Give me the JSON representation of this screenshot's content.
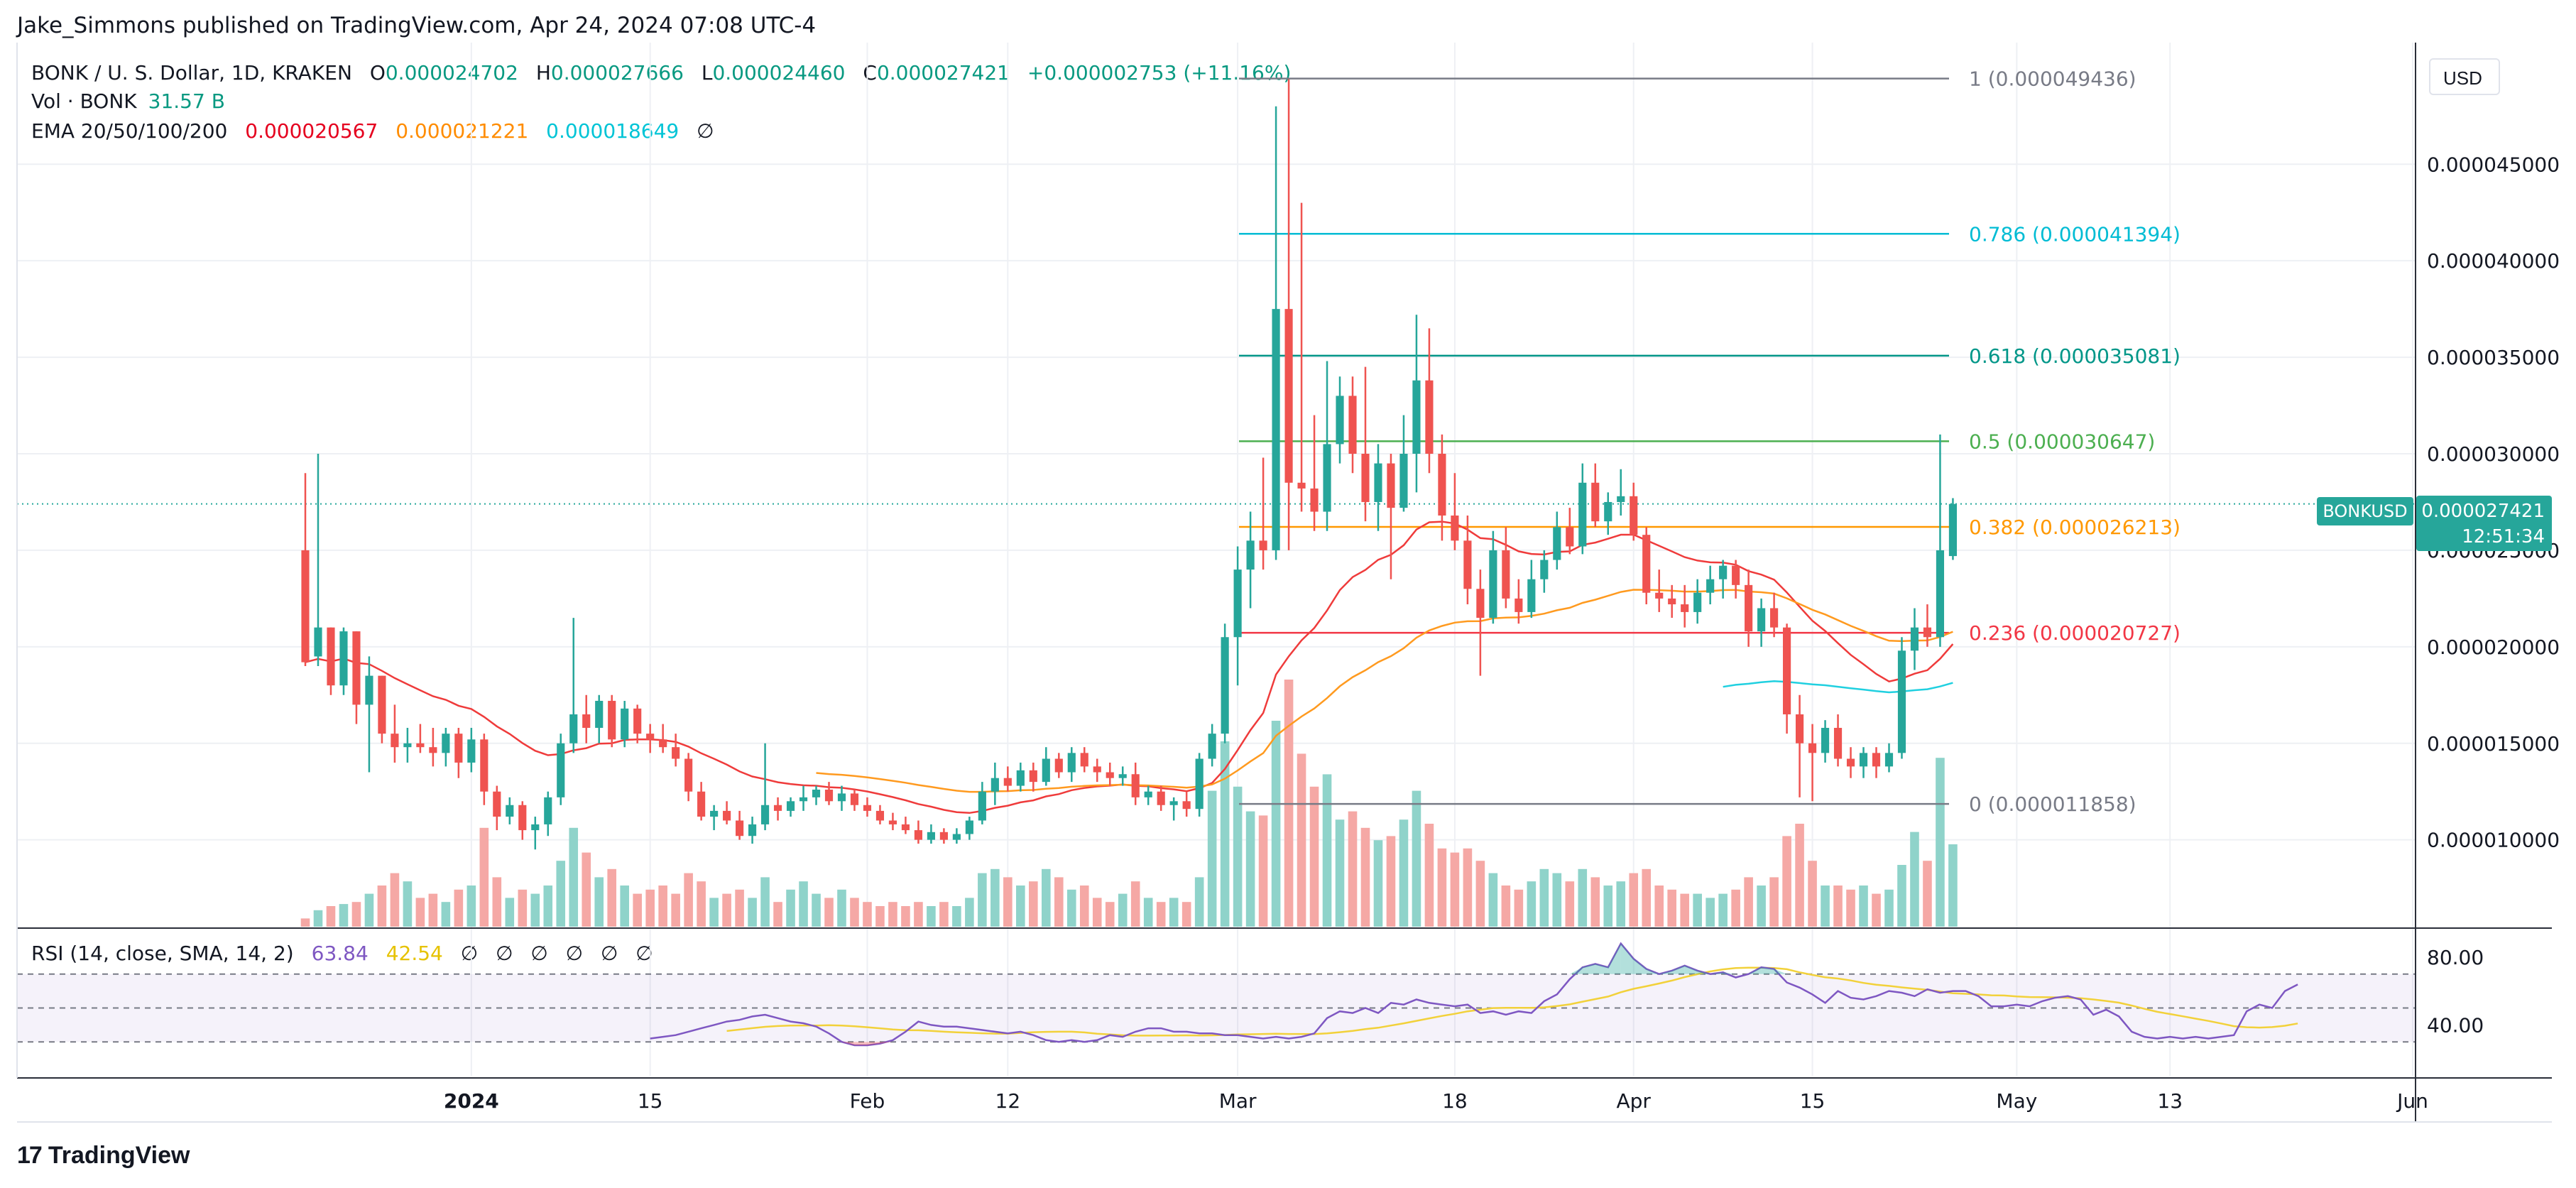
{
  "header": {
    "published": "Jake_Simmons published on TradingView.com, Apr 24, 2024 07:08 UTC-4"
  },
  "legend": {
    "symbol": "BONK / U. S. Dollar, 1D, KRAKEN",
    "o_label": "O",
    "o": "0.000024702",
    "h_label": "H",
    "h": "0.000027666",
    "l_label": "L",
    "l": "0.000024460",
    "c_label": "C",
    "c": "0.000027421",
    "change": "+0.000002753 (+11.16%)",
    "vol_label": "Vol · BONK",
    "vol": "31.57 B",
    "ema_label": "EMA 20/50/100/200",
    "ema20": "0.000020567",
    "ema50": "0.000021221",
    "ema100": "0.000018649",
    "ema200": "∅",
    "rsi_label": "RSI (14, close, SMA, 14, 2)",
    "rsi": "63.84",
    "rsi_ma": "42.54",
    "rsi_empty": [
      "∅",
      "∅",
      "∅",
      "∅",
      "∅",
      "∅"
    ]
  },
  "price_axis": {
    "currency": "USD",
    "symbol_tag": "BONKUSD",
    "last_price": "0.000027421",
    "countdown": "12:51:34",
    "ticks": [
      "0.000045000",
      "0.000040000",
      "0.000035000",
      "0.000030000",
      "0.000025000",
      "0.000020000",
      "0.000015000",
      "0.000010000"
    ],
    "rsi_ticks": [
      "80.00",
      "40.00"
    ]
  },
  "time_axis": {
    "labels": [
      "2024",
      "15",
      "Feb",
      "12",
      "Mar",
      "18",
      "Apr",
      "15",
      "May",
      "13",
      "Jun"
    ]
  },
  "footer": {
    "brand": "TradingView",
    "logo_glyph": "17"
  },
  "colors": {
    "up": "#26a69a",
    "down": "#ef5350",
    "up_vol": "#8fd3ca",
    "down_vol": "#f5a8a5",
    "ema20": "#ef3b3b",
    "ema50": "#ff9a1f",
    "ema100": "#20d0e0",
    "rsi": "#7e57c2",
    "rsi_ma": "#f2d13a"
  },
  "chart_data": {
    "type": "candlestick",
    "x_start": "2023-12-19",
    "candles": [
      [
        2.5e-05,
        2.9e-05,
        1.9e-05,
        1.92e-05,
        2.0
      ],
      [
        1.95e-05,
        3e-05,
        1.9e-05,
        2.1e-05,
        4.0
      ],
      [
        2.1e-05,
        2.1e-05,
        1.75e-05,
        1.8e-05,
        5.0
      ],
      [
        1.8e-05,
        2.1e-05,
        1.75e-05,
        2.08e-05,
        5.5
      ],
      [
        2.08e-05,
        2.08e-05,
        1.6e-05,
        1.7e-05,
        6.0
      ],
      [
        1.7e-05,
        1.95e-05,
        1.35e-05,
        1.85e-05,
        8.0
      ],
      [
        1.85e-05,
        1.85e-05,
        1.5e-05,
        1.55e-05,
        10.0
      ],
      [
        1.55e-05,
        1.7e-05,
        1.4e-05,
        1.48e-05,
        13.0
      ],
      [
        1.48e-05,
        1.58e-05,
        1.4e-05,
        1.5e-05,
        11.0
      ],
      [
        1.5e-05,
        1.6e-05,
        1.45e-05,
        1.48e-05,
        7.0
      ],
      [
        1.48e-05,
        1.58e-05,
        1.38e-05,
        1.45e-05,
        8.0
      ],
      [
        1.45e-05,
        1.58e-05,
        1.38e-05,
        1.55e-05,
        6.0
      ],
      [
        1.55e-05,
        1.58e-05,
        1.32e-05,
        1.4e-05,
        9.0
      ],
      [
        1.4e-05,
        1.58e-05,
        1.35e-05,
        1.52e-05,
        10.0
      ],
      [
        1.52e-05,
        1.55e-05,
        1.18e-05,
        1.25e-05,
        24.0
      ],
      [
        1.25e-05,
        1.28e-05,
        1.05e-05,
        1.12e-05,
        12.0
      ],
      [
        1.12e-05,
        1.22e-05,
        1.08e-05,
        1.18e-05,
        7.0
      ],
      [
        1.18e-05,
        1.2e-05,
        1e-05,
        1.05e-05,
        9.0
      ],
      [
        1.05e-05,
        1.12e-05,
        9.5e-06,
        1.08e-05,
        8.0
      ],
      [
        1.08e-05,
        1.25e-05,
        1.02e-05,
        1.22e-05,
        10.0
      ],
      [
        1.22e-05,
        1.55e-05,
        1.18e-05,
        1.5e-05,
        16.0
      ],
      [
        1.5e-05,
        2.15e-05,
        1.45e-05,
        1.65e-05,
        24.0
      ],
      [
        1.65e-05,
        1.75e-05,
        1.5e-05,
        1.58e-05,
        18.0
      ],
      [
        1.58e-05,
        1.75e-05,
        1.5e-05,
        1.72e-05,
        12.0
      ],
      [
        1.72e-05,
        1.75e-05,
        1.48e-05,
        1.52e-05,
        14.0
      ],
      [
        1.52e-05,
        1.72e-05,
        1.48e-05,
        1.68e-05,
        10.0
      ],
      [
        1.68e-05,
        1.7e-05,
        1.5e-05,
        1.55e-05,
        8.0
      ],
      [
        1.55e-05,
        1.6e-05,
        1.45e-05,
        1.52e-05,
        9.0
      ],
      [
        1.52e-05,
        1.6e-05,
        1.45e-05,
        1.48e-05,
        10.0
      ],
      [
        1.48e-05,
        1.55e-05,
        1.38e-05,
        1.42e-05,
        8.0
      ],
      [
        1.42e-05,
        1.45e-05,
        1.2e-05,
        1.25e-05,
        13.0
      ],
      [
        1.25e-05,
        1.3e-05,
        1.1e-05,
        1.12e-05,
        11.0
      ],
      [
        1.12e-05,
        1.18e-05,
        1.05e-05,
        1.15e-05,
        7.0
      ],
      [
        1.15e-05,
        1.2e-05,
        1.08e-05,
        1.1e-05,
        8.0
      ],
      [
        1.1e-05,
        1.15e-05,
        1e-05,
        1.02e-05,
        9.0
      ],
      [
        1.02e-05,
        1.12e-05,
        9.8e-06,
        1.08e-05,
        7.0
      ],
      [
        1.08e-05,
        1.5e-05,
        1.05e-05,
        1.18e-05,
        12.0
      ],
      [
        1.18e-05,
        1.22e-05,
        1.1e-05,
        1.15e-05,
        6.0
      ],
      [
        1.15e-05,
        1.22e-05,
        1.12e-05,
        1.2e-05,
        9.0
      ],
      [
        1.2e-05,
        1.28e-05,
        1.15e-05,
        1.22e-05,
        11.0
      ],
      [
        1.22e-05,
        1.28e-05,
        1.18e-05,
        1.26e-05,
        8.0
      ],
      [
        1.26e-05,
        1.3e-05,
        1.18e-05,
        1.2e-05,
        7.0
      ],
      [
        1.2e-05,
        1.28e-05,
        1.15e-05,
        1.24e-05,
        9.0
      ],
      [
        1.24e-05,
        1.26e-05,
        1.15e-05,
        1.18e-05,
        7.0
      ],
      [
        1.18e-05,
        1.22e-05,
        1.12e-05,
        1.15e-05,
        6.0
      ],
      [
        1.15e-05,
        1.18e-05,
        1.08e-05,
        1.1e-05,
        5.0
      ],
      [
        1.1e-05,
        1.14e-05,
        1.05e-05,
        1.08e-05,
        6.0
      ],
      [
        1.08e-05,
        1.12e-05,
        1.03e-05,
        1.05e-05,
        5.0
      ],
      [
        1.05e-05,
        1.1e-05,
        9.8e-06,
        1e-05,
        6.0
      ],
      [
        1e-05,
        1.08e-05,
        9.8e-06,
        1.04e-05,
        5.0
      ],
      [
        1.04e-05,
        1.06e-05,
        9.8e-06,
        1e-05,
        6.0
      ],
      [
        1e-05,
        1.06e-05,
        9.8e-06,
        1.03e-05,
        5.0
      ],
      [
        1.03e-05,
        1.12e-05,
        1e-05,
        1.1e-05,
        7.0
      ],
      [
        1.1e-05,
        1.3e-05,
        1.08e-05,
        1.25e-05,
        13.0
      ],
      [
        1.25e-05,
        1.4e-05,
        1.18e-05,
        1.32e-05,
        14.0
      ],
      [
        1.32e-05,
        1.38e-05,
        1.25e-05,
        1.28e-05,
        12.0
      ],
      [
        1.28e-05,
        1.4e-05,
        1.25e-05,
        1.36e-05,
        10.0
      ],
      [
        1.36e-05,
        1.4e-05,
        1.25e-05,
        1.3e-05,
        11.0
      ],
      [
        1.3e-05,
        1.48e-05,
        1.28e-05,
        1.42e-05,
        14.0
      ],
      [
        1.42e-05,
        1.45e-05,
        1.32e-05,
        1.35e-05,
        12.0
      ],
      [
        1.35e-05,
        1.48e-05,
        1.3e-05,
        1.45e-05,
        9.0
      ],
      [
        1.45e-05,
        1.48e-05,
        1.35e-05,
        1.38e-05,
        10.0
      ],
      [
        1.38e-05,
        1.42e-05,
        1.3e-05,
        1.35e-05,
        7.0
      ],
      [
        1.35e-05,
        1.4e-05,
        1.28e-05,
        1.32e-05,
        6.0
      ],
      [
        1.32e-05,
        1.38e-05,
        1.28e-05,
        1.34e-05,
        8.0
      ],
      [
        1.34e-05,
        1.4e-05,
        1.18e-05,
        1.22e-05,
        11.0
      ],
      [
        1.22e-05,
        1.28e-05,
        1.18e-05,
        1.25e-05,
        7.0
      ],
      [
        1.25e-05,
        1.28e-05,
        1.15e-05,
        1.18e-05,
        6.0
      ],
      [
        1.18e-05,
        1.22e-05,
        1.1e-05,
        1.2e-05,
        7.0
      ],
      [
        1.2e-05,
        1.25e-05,
        1.12e-05,
        1.16e-05,
        6.0
      ],
      [
        1.16e-05,
        1.45e-05,
        1.12e-05,
        1.42e-05,
        12.0
      ],
      [
        1.42e-05,
        1.6e-05,
        1.38e-05,
        1.55e-05,
        33.0
      ],
      [
        1.55e-05,
        2.12e-05,
        1.5e-05,
        2.05e-05,
        45.0
      ],
      [
        2.05e-05,
        2.52e-05,
        1.8e-05,
        2.4e-05,
        34.0
      ],
      [
        2.4e-05,
        2.7e-05,
        2.2e-05,
        2.55e-05,
        28.0
      ],
      [
        2.55e-05,
        2.98e-05,
        2.4e-05,
        2.5e-05,
        27.0
      ],
      [
        2.5e-05,
        4.8e-05,
        2.45e-05,
        3.75e-05,
        50.0
      ],
      [
        3.75e-05,
        4.94e-05,
        2.5e-05,
        2.85e-05,
        60.0
      ],
      [
        2.85e-05,
        4.3e-05,
        2.7e-05,
        2.82e-05,
        42.0
      ],
      [
        2.82e-05,
        3.2e-05,
        2.6e-05,
        2.7e-05,
        34.0
      ],
      [
        2.7e-05,
        3.48e-05,
        2.6e-05,
        3.05e-05,
        37.0
      ],
      [
        3.05e-05,
        3.4e-05,
        2.95e-05,
        3.3e-05,
        26.0
      ],
      [
        3.3e-05,
        3.4e-05,
        2.9e-05,
        3e-05,
        28.0
      ],
      [
        3e-05,
        3.45e-05,
        2.65e-05,
        2.75e-05,
        24.0
      ],
      [
        2.75e-05,
        3.05e-05,
        2.6e-05,
        2.95e-05,
        21.0
      ],
      [
        2.95e-05,
        3e-05,
        2.35e-05,
        2.72e-05,
        22.0
      ],
      [
        2.72e-05,
        3.2e-05,
        2.7e-05,
        3e-05,
        26.0
      ],
      [
        3e-05,
        3.72e-05,
        2.8e-05,
        3.38e-05,
        33.0
      ],
      [
        3.38e-05,
        3.65e-05,
        2.9e-05,
        3e-05,
        25.0
      ],
      [
        3e-05,
        3.1e-05,
        2.55e-05,
        2.68e-05,
        19.0
      ],
      [
        2.68e-05,
        2.9e-05,
        2.5e-05,
        2.55e-05,
        18.0
      ],
      [
        2.55e-05,
        2.68e-05,
        2.22e-05,
        2.3e-05,
        19.0
      ],
      [
        2.3e-05,
        2.4e-05,
        1.85e-05,
        2.15e-05,
        16.0
      ],
      [
        2.15e-05,
        2.6e-05,
        2.12e-05,
        2.5e-05,
        13.0
      ],
      [
        2.5e-05,
        2.62e-05,
        2.2e-05,
        2.25e-05,
        10.0
      ],
      [
        2.25e-05,
        2.35e-05,
        2.12e-05,
        2.18e-05,
        9.0
      ],
      [
        2.18e-05,
        2.45e-05,
        2.15e-05,
        2.35e-05,
        11.0
      ],
      [
        2.35e-05,
        2.5e-05,
        2.28e-05,
        2.45e-05,
        14.0
      ],
      [
        2.45e-05,
        2.7e-05,
        2.4e-05,
        2.62e-05,
        13.0
      ],
      [
        2.62e-05,
        2.72e-05,
        2.48e-05,
        2.52e-05,
        11.0
      ],
      [
        2.52e-05,
        2.95e-05,
        2.48e-05,
        2.85e-05,
        14.0
      ],
      [
        2.85e-05,
        2.95e-05,
        2.62e-05,
        2.65e-05,
        12.0
      ],
      [
        2.65e-05,
        2.8e-05,
        2.58e-05,
        2.75e-05,
        10.0
      ],
      [
        2.75e-05,
        2.92e-05,
        2.68e-05,
        2.78e-05,
        11.0
      ],
      [
        2.78e-05,
        2.85e-05,
        2.55e-05,
        2.58e-05,
        13.0
      ],
      [
        2.58e-05,
        2.62e-05,
        2.22e-05,
        2.28e-05,
        14.0
      ],
      [
        2.28e-05,
        2.4e-05,
        2.18e-05,
        2.25e-05,
        10.0
      ],
      [
        2.25e-05,
        2.32e-05,
        2.15e-05,
        2.22e-05,
        9.0
      ],
      [
        2.22e-05,
        2.32e-05,
        2.1e-05,
        2.18e-05,
        8.0
      ],
      [
        2.18e-05,
        2.35e-05,
        2.12e-05,
        2.28e-05,
        8.0
      ],
      [
        2.28e-05,
        2.42e-05,
        2.22e-05,
        2.35e-05,
        7.0
      ],
      [
        2.35e-05,
        2.45e-05,
        2.25e-05,
        2.42e-05,
        8.0
      ],
      [
        2.42e-05,
        2.45e-05,
        2.25e-05,
        2.32e-05,
        9.0
      ],
      [
        2.32e-05,
        2.4e-05,
        2e-05,
        2.08e-05,
        12.0
      ],
      [
        2.08e-05,
        2.25e-05,
        2e-05,
        2.2e-05,
        10.0
      ],
      [
        2.2e-05,
        2.28e-05,
        2.05e-05,
        2.1e-05,
        12.0
      ],
      [
        2.1e-05,
        2.12e-05,
        1.55e-05,
        1.65e-05,
        22.0
      ],
      [
        1.65e-05,
        1.75e-05,
        1.22e-05,
        1.5e-05,
        25.0
      ],
      [
        1.5e-05,
        1.6e-05,
        1.2e-05,
        1.45e-05,
        16.0
      ],
      [
        1.45e-05,
        1.62e-05,
        1.4e-05,
        1.58e-05,
        10.0
      ],
      [
        1.58e-05,
        1.65e-05,
        1.38e-05,
        1.42e-05,
        10.0
      ],
      [
        1.42e-05,
        1.48e-05,
        1.32e-05,
        1.38e-05,
        9.0
      ],
      [
        1.38e-05,
        1.48e-05,
        1.32e-05,
        1.45e-05,
        10.0
      ],
      [
        1.45e-05,
        1.48e-05,
        1.32e-05,
        1.38e-05,
        8.0
      ],
      [
        1.38e-05,
        1.5e-05,
        1.35e-05,
        1.45e-05,
        9.0
      ],
      [
        1.45e-05,
        2.05e-05,
        1.42e-05,
        1.98e-05,
        15.0
      ],
      [
        1.98e-05,
        2.2e-05,
        1.88e-05,
        2.1e-05,
        23.0
      ],
      [
        2.1e-05,
        2.22e-05,
        2e-05,
        2.05e-05,
        16.0
      ],
      [
        2.05e-05,
        3.1e-05,
        2e-05,
        2.5e-05,
        41.0
      ],
      [
        2.47e-05,
        2.77e-05,
        2.45e-05,
        2.74e-05,
        20.0
      ]
    ],
    "ema20_start": 0,
    "ema50_start": 40,
    "ema100_start": 111,
    "rsi": [
      32,
      33,
      34,
      36,
      38,
      40,
      42,
      43,
      45,
      46,
      44,
      42,
      41,
      39,
      35,
      30,
      28,
      28,
      29,
      31,
      36,
      42,
      40,
      39,
      39,
      38,
      37,
      36,
      35,
      36,
      34,
      31,
      30,
      31,
      30,
      31,
      34,
      33,
      36,
      38,
      38,
      36,
      36,
      35,
      35,
      34,
      34,
      33,
      32,
      33,
      32,
      33,
      35,
      44,
      48,
      47,
      50,
      47,
      53,
      52,
      55,
      53,
      52,
      51,
      52,
      47,
      48,
      46,
      48,
      47,
      54,
      58,
      67,
      74,
      76,
      74,
      88,
      79,
      73,
      70,
      72,
      75,
      72,
      70,
      71,
      68,
      70,
      74,
      73,
      65,
      62,
      58,
      53,
      60,
      56,
      55,
      57,
      60,
      59,
      57,
      61,
      59,
      60,
      60,
      57,
      51,
      51,
      52,
      51,
      54,
      56,
      57,
      55,
      46,
      49,
      45,
      36,
      33,
      32,
      33,
      32,
      33,
      32,
      33,
      34,
      48,
      52,
      50,
      60,
      63.84
    ],
    "fibonacci": [
      {
        "level": "1",
        "value": "0.000049436",
        "price": 4.9436e-05,
        "color": "#787b86"
      },
      {
        "level": "0.786",
        "value": "0.000041394",
        "price": 4.1394e-05,
        "color": "#00bcd4"
      },
      {
        "level": "0.618",
        "value": "0.000035081",
        "price": 3.5081e-05,
        "color": "#009688"
      },
      {
        "level": "0.5",
        "value": "0.000030647",
        "price": 3.0647e-05,
        "color": "#4caf50"
      },
      {
        "level": "0.382",
        "value": "0.000026213",
        "price": 2.6213e-05,
        "color": "#ff9800"
      },
      {
        "level": "0.236",
        "value": "0.000020727",
        "price": 2.0727e-05,
        "color": "#f23645"
      },
      {
        "level": "0",
        "value": "0.000011858",
        "price": 1.1858e-05,
        "color": "#787b86"
      }
    ],
    "y_range": [
      5.5e-06,
      5.13e-05
    ],
    "rsi_range": [
      10,
      95
    ],
    "rsi_band": [
      30,
      70
    ]
  }
}
